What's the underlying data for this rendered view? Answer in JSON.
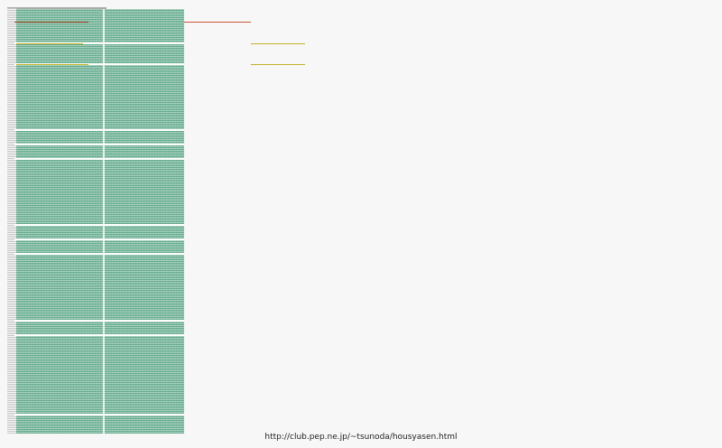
{
  "source_url": "http://club.pep.ne.jp/~tsunoda/housyasen.html"
}
